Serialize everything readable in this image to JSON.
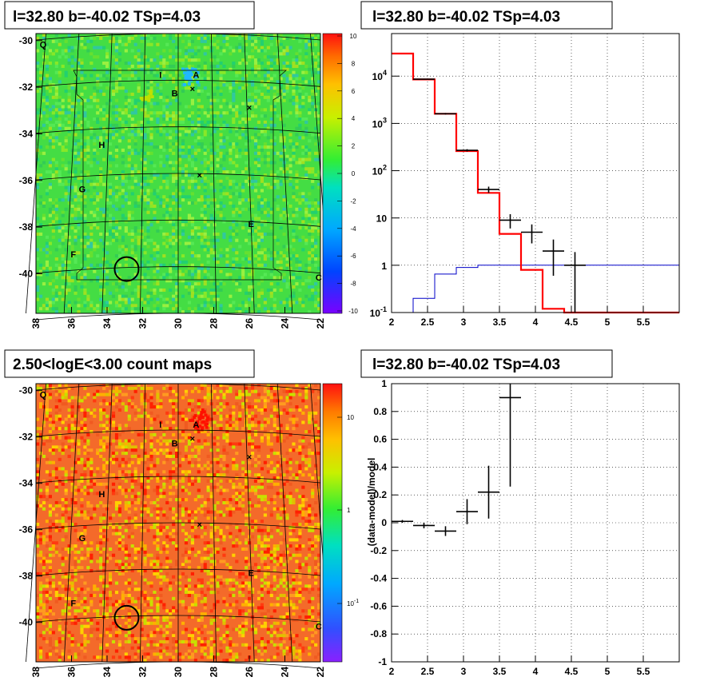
{
  "panels": {
    "top_left_title": "l=32.80 b=-40.02 TSp=4.03",
    "top_right_title": "l=32.80 b=-40.02 TSp=4.03",
    "bottom_left_title": "2.50<logE<3.00 count maps",
    "bottom_right_title": "l=32.80 b=-40.02 TSp=4.03"
  },
  "colors": {
    "model_line": "#ff0000",
    "background_line": "#0000c8",
    "data_points": "#000000",
    "map_top_bg": "#44dd44",
    "map_bottom_bg": "#f46a2a"
  },
  "chart_data": [
    {
      "type": "heatmap",
      "name": "residual_map",
      "x_ticks": [
        "38",
        "36",
        "34",
        "32",
        "30",
        "28",
        "26",
        "24",
        "22"
      ],
      "y_ticks": [
        "-30",
        "-32",
        "-34",
        "-36",
        "-38",
        "-40"
      ],
      "xlim": [
        38,
        22
      ],
      "ylim": [
        -41.7,
        -29.7
      ],
      "colorbar": {
        "min": -10,
        "max": 10,
        "ticks": [
          "10",
          "8",
          "6",
          "4",
          "2",
          "0",
          "-2",
          "-4",
          "-6",
          "-8",
          "-10"
        ]
      },
      "sources": [
        {
          "label": "Q",
          "l": 37.6,
          "b": -30.3
        },
        {
          "label": "I",
          "l": 31.0,
          "b": -31.6
        },
        {
          "label": "A",
          "l": 29.0,
          "b": -31.6
        },
        {
          "label": "B",
          "l": 30.2,
          "b": -32.4
        },
        {
          "label": "H",
          "l": 34.3,
          "b": -34.6
        },
        {
          "label": "G",
          "l": 35.4,
          "b": -36.5
        },
        {
          "label": "E",
          "l": 25.9,
          "b": -38.0
        },
        {
          "label": "F",
          "l": 35.9,
          "b": -39.3
        },
        {
          "label": "C",
          "l": 22.1,
          "b": -40.3
        }
      ],
      "circle": {
        "l": 32.9,
        "b": -39.8
      }
    },
    {
      "type": "line",
      "name": "spectrum",
      "title": "l=32.80 b=-40.02 TSp=4.03",
      "x_ticks": [
        "2",
        "2.5",
        "3",
        "3.5",
        "4",
        "4.5",
        "5",
        "5.5"
      ],
      "xlim": [
        2,
        6
      ],
      "ylim_log10": [
        -1,
        4.9
      ],
      "y_ticks": [
        "10^-1",
        "1",
        "10",
        "10^2",
        "10^3",
        "10^4"
      ],
      "model_steps": {
        "edges": [
          2.0,
          2.3,
          2.6,
          2.9,
          3.2,
          3.5,
          3.8,
          4.1,
          4.4,
          4.7,
          5.0,
          5.3,
          5.6,
          6.0
        ],
        "values": [
          30000,
          8500,
          1600,
          260,
          34,
          4.6,
          0.8,
          0.12,
          0.1,
          0.1,
          0.1,
          0.1,
          0.1
        ]
      },
      "background_steps": {
        "edges": [
          2.0,
          2.3,
          2.6,
          2.9,
          3.2,
          3.5,
          3.8,
          4.1,
          4.4,
          4.7,
          5.0,
          5.3,
          5.6,
          6.0
        ],
        "values": [
          0.1,
          0.2,
          0.65,
          0.9,
          1.0,
          1.0,
          1.0,
          1.0,
          1.0,
          1.0,
          1.0,
          1.0,
          1.0
        ]
      },
      "data_points": [
        {
          "x": 2.45,
          "y": 8600,
          "xerr": 0.15,
          "ylo": 8450,
          "yhi": 8750
        },
        {
          "x": 2.75,
          "y": 1600,
          "xerr": 0.15,
          "ylo": 1540,
          "yhi": 1660
        },
        {
          "x": 3.05,
          "y": 270,
          "xerr": 0.15,
          "ylo": 255,
          "yhi": 285
        },
        {
          "x": 3.35,
          "y": 40,
          "xerr": 0.15,
          "ylo": 34,
          "yhi": 46
        },
        {
          "x": 3.65,
          "y": 9,
          "xerr": 0.15,
          "ylo": 6,
          "yhi": 12
        },
        {
          "x": 3.95,
          "y": 5,
          "xerr": 0.15,
          "ylo": 2.9,
          "yhi": 7.3
        },
        {
          "x": 4.25,
          "y": 2,
          "xerr": 0.15,
          "ylo": 0.6,
          "yhi": 3.5
        },
        {
          "x": 4.55,
          "y": 1,
          "xerr": 0.15,
          "ylo": 0.08,
          "yhi": 1.9
        }
      ]
    },
    {
      "type": "heatmap",
      "name": "count_map",
      "title": "2.50<logE<3.00 count maps",
      "x_ticks": [
        "38",
        "36",
        "34",
        "32",
        "30",
        "28",
        "26",
        "24",
        "22"
      ],
      "y_ticks": [
        "-30",
        "-32",
        "-34",
        "-36",
        "-38",
        "-40"
      ],
      "xlim": [
        38,
        22
      ],
      "ylim": [
        -41.7,
        -29.7
      ],
      "colorbar": {
        "scale": "log",
        "ticks": [
          "10",
          "1",
          "10^-1"
        ]
      },
      "sources": [
        {
          "label": "Q",
          "l": 37.6,
          "b": -30.3
        },
        {
          "label": "I",
          "l": 31.0,
          "b": -31.6
        },
        {
          "label": "A",
          "l": 29.0,
          "b": -31.6
        },
        {
          "label": "B",
          "l": 30.2,
          "b": -32.4
        },
        {
          "label": "H",
          "l": 34.3,
          "b": -34.6
        },
        {
          "label": "G",
          "l": 35.4,
          "b": -36.5
        },
        {
          "label": "E",
          "l": 25.9,
          "b": -38.0
        },
        {
          "label": "F",
          "l": 35.9,
          "b": -39.3
        },
        {
          "label": "C",
          "l": 22.1,
          "b": -40.3
        }
      ],
      "circle": {
        "l": 32.9,
        "b": -39.8
      }
    },
    {
      "type": "scatter",
      "name": "residuals",
      "title": "l=32.80 b=-40.02 TSp=4.03",
      "ylabel": "(data-model)/model",
      "x_ticks": [
        "2",
        "2.5",
        "3",
        "3.5",
        "4",
        "4.5",
        "5",
        "5.5"
      ],
      "y_ticks": [
        "1",
        "0.8",
        "0.6",
        "0.4",
        "0.2",
        "0",
        "-0.2",
        "-0.4",
        "-0.6",
        "-0.8",
        "-1"
      ],
      "xlim": [
        2,
        6
      ],
      "ylim": [
        -1,
        1
      ],
      "points": [
        {
          "x": 2.15,
          "y": 0.01,
          "xerr": 0.15,
          "yerr": 0.01
        },
        {
          "x": 2.45,
          "y": -0.02,
          "xerr": 0.15,
          "yerr": 0.02
        },
        {
          "x": 2.75,
          "y": -0.06,
          "xerr": 0.15,
          "yerr": 0.035
        },
        {
          "x": 3.05,
          "y": 0.08,
          "xerr": 0.15,
          "yerr": 0.09
        },
        {
          "x": 3.35,
          "y": 0.22,
          "xerr": 0.15,
          "yerr": 0.19
        },
        {
          "x": 3.65,
          "y": 0.9,
          "xerr": 0.15,
          "ylo": 0.26,
          "yhi": 1.0
        }
      ]
    }
  ]
}
